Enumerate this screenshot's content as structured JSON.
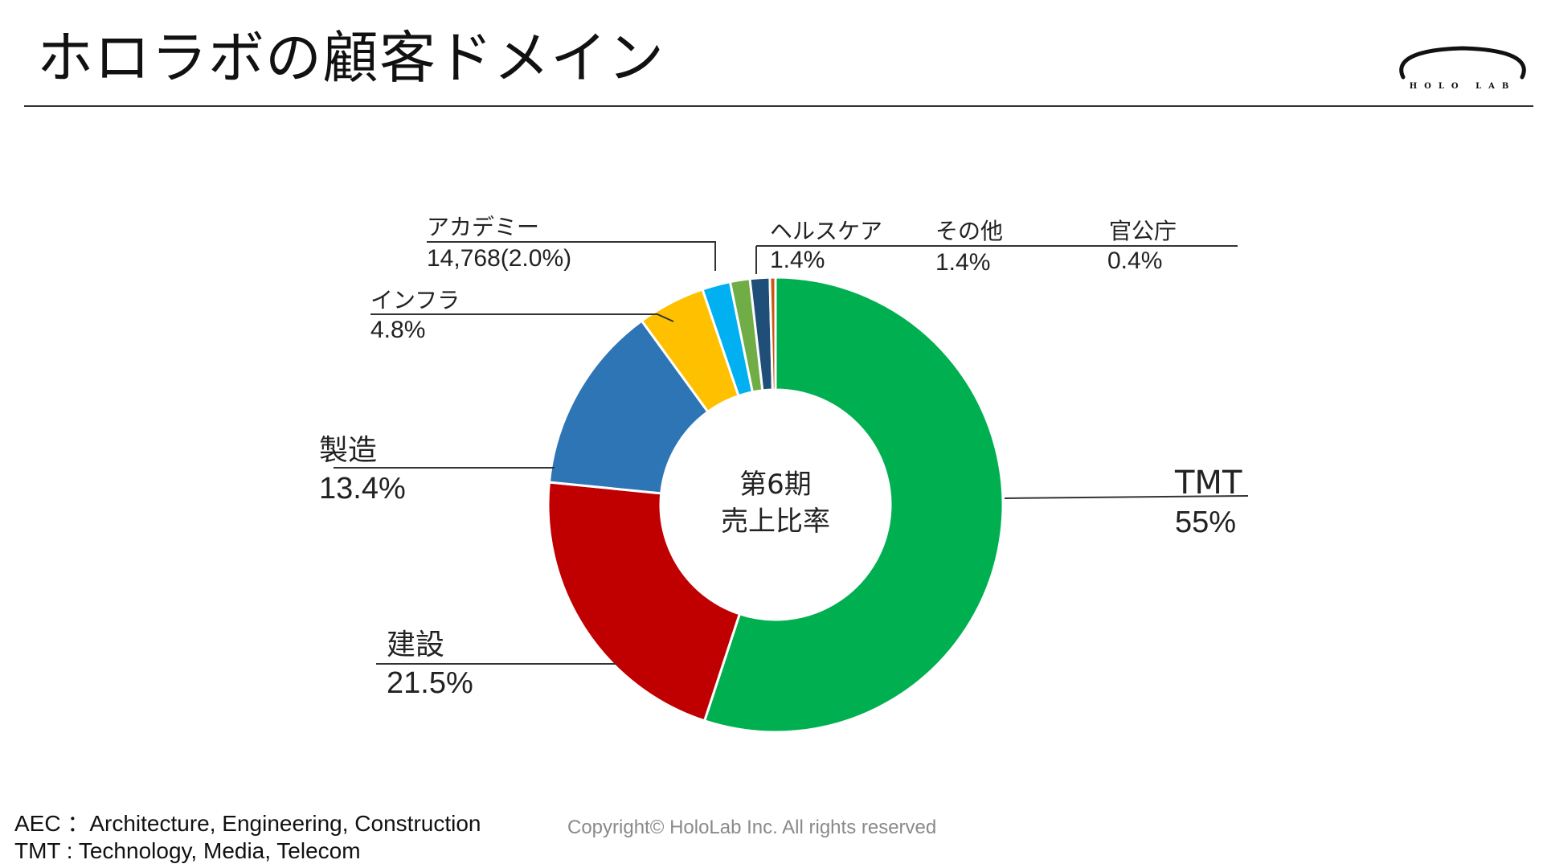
{
  "slide": {
    "title": "ホロラボの顧客ドメイン",
    "logo_text": "HOLO LAB"
  },
  "chart_data": {
    "type": "pie",
    "center_label_line1": "第6期",
    "center_label_line2": "売上比率",
    "slices": [
      {
        "name": "TMT",
        "value": 55.0,
        "label": "55%",
        "color": "#00b050"
      },
      {
        "name": "建設",
        "value": 21.5,
        "label": "21.5%",
        "color": "#c00000"
      },
      {
        "name": "製造",
        "value": 13.4,
        "label": "13.4%",
        "color": "#2e75b6"
      },
      {
        "name": "インフラ",
        "value": 4.8,
        "label": "4.8%",
        "color": "#ffc000"
      },
      {
        "name": "アカデミー",
        "value": 2.0,
        "label": "14,768(2.0%)",
        "color": "#00b0f0"
      },
      {
        "name": "ヘルスケア",
        "value": 1.4,
        "label": "1.4%",
        "color": "#70ad47"
      },
      {
        "name": "その他",
        "value": 1.4,
        "label": "1.4%",
        "color": "#1f4e79"
      },
      {
        "name": "官公庁",
        "value": 0.4,
        "label": "0.4%",
        "color": "#c55a11"
      }
    ]
  },
  "footnotes": {
    "aec": "AEC ：Architecture, Engineering, Construction",
    "tmt": "TMT : Technology, Media, Telecom"
  },
  "copyright": "Copyright© HoloLab Inc. All rights reserved"
}
